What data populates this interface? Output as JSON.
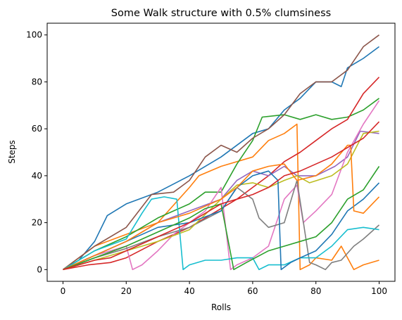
{
  "chart_data": {
    "type": "line",
    "title": "Some Walk structure with 0.5% clumsiness",
    "xlabel": "Rolls",
    "ylabel": "Steps",
    "xlim": [
      -5,
      105
    ],
    "ylim": [
      -5,
      105
    ],
    "x_ticks": [
      0,
      20,
      40,
      60,
      80,
      100
    ],
    "y_ticks": [
      0,
      20,
      40,
      60,
      80,
      100
    ],
    "grid": false,
    "series": [
      {
        "color": "#1f77b4",
        "points": [
          [
            0,
            0
          ],
          [
            5,
            4
          ],
          [
            10,
            12
          ],
          [
            14,
            23
          ],
          [
            20,
            28
          ],
          [
            30,
            33
          ],
          [
            40,
            40
          ],
          [
            50,
            48
          ],
          [
            60,
            58
          ],
          [
            65,
            60
          ],
          [
            70,
            68
          ],
          [
            75,
            73
          ],
          [
            80,
            80
          ],
          [
            85,
            80
          ],
          [
            88,
            78
          ],
          [
            90,
            86
          ],
          [
            95,
            90
          ],
          [
            100,
            95
          ]
        ]
      },
      {
        "color": "#ff7f0e",
        "points": [
          [
            0,
            0
          ],
          [
            10,
            10
          ],
          [
            20,
            15
          ],
          [
            30,
            20
          ],
          [
            40,
            35
          ],
          [
            43,
            40
          ],
          [
            50,
            44
          ],
          [
            60,
            48
          ],
          [
            65,
            55
          ],
          [
            70,
            58
          ],
          [
            74,
            62
          ],
          [
            75,
            0
          ],
          [
            78,
            2
          ],
          [
            80,
            5
          ],
          [
            85,
            4
          ],
          [
            88,
            10
          ],
          [
            92,
            0
          ],
          [
            95,
            2
          ],
          [
            100,
            4
          ]
        ]
      },
      {
        "color": "#2ca02c",
        "points": [
          [
            0,
            0
          ],
          [
            10,
            8
          ],
          [
            20,
            14
          ],
          [
            30,
            22
          ],
          [
            40,
            28
          ],
          [
            45,
            33
          ],
          [
            50,
            33
          ],
          [
            55,
            45
          ],
          [
            60,
            55
          ],
          [
            63,
            65
          ],
          [
            70,
            66
          ],
          [
            75,
            64
          ],
          [
            80,
            66
          ],
          [
            85,
            64
          ],
          [
            90,
            65
          ],
          [
            95,
            68
          ],
          [
            100,
            73
          ]
        ]
      },
      {
        "color": "#d62728",
        "points": [
          [
            0,
            0
          ],
          [
            8,
            2
          ],
          [
            15,
            3
          ],
          [
            20,
            5
          ],
          [
            30,
            12
          ],
          [
            40,
            18
          ],
          [
            50,
            26
          ],
          [
            55,
            30
          ],
          [
            60,
            35
          ],
          [
            65,
            40
          ],
          [
            70,
            46
          ],
          [
            75,
            50
          ],
          [
            80,
            55
          ],
          [
            85,
            60
          ],
          [
            90,
            64
          ],
          [
            95,
            75
          ],
          [
            100,
            82
          ]
        ]
      },
      {
        "color": "#9467bd",
        "points": [
          [
            0,
            0
          ],
          [
            10,
            6
          ],
          [
            20,
            12
          ],
          [
            30,
            20
          ],
          [
            40,
            25
          ],
          [
            50,
            30
          ],
          [
            55,
            38
          ],
          [
            60,
            42
          ],
          [
            65,
            40
          ],
          [
            70,
            44
          ],
          [
            74,
            40
          ],
          [
            80,
            40
          ],
          [
            86,
            44
          ],
          [
            90,
            48
          ],
          [
            94,
            59
          ],
          [
            100,
            58
          ]
        ]
      },
      {
        "color": "#8c564b",
        "points": [
          [
            0,
            0
          ],
          [
            5,
            5
          ],
          [
            10,
            10
          ],
          [
            20,
            18
          ],
          [
            28,
            32
          ],
          [
            35,
            33
          ],
          [
            40,
            38
          ],
          [
            45,
            48
          ],
          [
            50,
            53
          ],
          [
            55,
            50
          ],
          [
            60,
            56
          ],
          [
            65,
            60
          ],
          [
            70,
            66
          ],
          [
            75,
            75
          ],
          [
            80,
            80
          ],
          [
            85,
            80
          ],
          [
            90,
            85
          ],
          [
            95,
            95
          ],
          [
            100,
            100
          ]
        ]
      },
      {
        "color": "#e377c2",
        "points": [
          [
            0,
            0
          ],
          [
            5,
            3
          ],
          [
            10,
            6
          ],
          [
            20,
            10
          ],
          [
            22,
            0
          ],
          [
            25,
            2
          ],
          [
            30,
            8
          ],
          [
            35,
            15
          ],
          [
            40,
            20
          ],
          [
            45,
            25
          ],
          [
            50,
            35
          ],
          [
            53,
            0
          ],
          [
            55,
            2
          ],
          [
            60,
            5
          ],
          [
            65,
            10
          ],
          [
            70,
            30
          ],
          [
            74,
            36
          ],
          [
            76,
            20
          ],
          [
            80,
            25
          ],
          [
            85,
            32
          ],
          [
            90,
            50
          ],
          [
            95,
            62
          ],
          [
            100,
            72
          ]
        ]
      },
      {
        "color": "#7f7f7f",
        "points": [
          [
            0,
            0
          ],
          [
            10,
            5
          ],
          [
            20,
            9
          ],
          [
            30,
            14
          ],
          [
            40,
            18
          ],
          [
            50,
            25
          ],
          [
            55,
            35
          ],
          [
            60,
            30
          ],
          [
            62,
            22
          ],
          [
            65,
            18
          ],
          [
            70,
            20
          ],
          [
            74,
            38
          ],
          [
            78,
            3
          ],
          [
            80,
            2
          ],
          [
            83,
            0
          ],
          [
            85,
            3
          ],
          [
            88,
            4
          ],
          [
            92,
            10
          ],
          [
            95,
            13
          ],
          [
            100,
            19
          ]
        ]
      },
      {
        "color": "#bcbd22",
        "points": [
          [
            0,
            0
          ],
          [
            10,
            4
          ],
          [
            20,
            8
          ],
          [
            30,
            12
          ],
          [
            40,
            17
          ],
          [
            50,
            30
          ],
          [
            55,
            36
          ],
          [
            60,
            37
          ],
          [
            65,
            35
          ],
          [
            70,
            38
          ],
          [
            74,
            40
          ],
          [
            78,
            37
          ],
          [
            85,
            40
          ],
          [
            90,
            45
          ],
          [
            95,
            58
          ],
          [
            100,
            59
          ]
        ]
      },
      {
        "color": "#17becf",
        "points": [
          [
            0,
            0
          ],
          [
            10,
            8
          ],
          [
            20,
            13
          ],
          [
            25,
            24
          ],
          [
            28,
            30
          ],
          [
            32,
            31
          ],
          [
            36,
            30
          ],
          [
            38,
            0
          ],
          [
            40,
            2
          ],
          [
            45,
            4
          ],
          [
            50,
            4
          ],
          [
            55,
            5
          ],
          [
            60,
            5
          ],
          [
            62,
            0
          ],
          [
            65,
            2
          ],
          [
            70,
            2
          ],
          [
            75,
            5
          ],
          [
            80,
            5
          ],
          [
            85,
            10
          ],
          [
            90,
            17
          ],
          [
            95,
            18
          ],
          [
            100,
            17
          ]
        ]
      },
      {
        "color": "#1f77b4",
        "points": [
          [
            0,
            0
          ],
          [
            10,
            6
          ],
          [
            20,
            12
          ],
          [
            30,
            18
          ],
          [
            40,
            20
          ],
          [
            50,
            25
          ],
          [
            55,
            35
          ],
          [
            60,
            40
          ],
          [
            65,
            42
          ],
          [
            68,
            38
          ],
          [
            69,
            0
          ],
          [
            72,
            3
          ],
          [
            75,
            5
          ],
          [
            80,
            8
          ],
          [
            85,
            15
          ],
          [
            90,
            25
          ],
          [
            95,
            30
          ],
          [
            100,
            37
          ]
        ]
      },
      {
        "color": "#ff7f0e",
        "points": [
          [
            0,
            0
          ],
          [
            10,
            6
          ],
          [
            20,
            12
          ],
          [
            30,
            20
          ],
          [
            40,
            24
          ],
          [
            50,
            30
          ],
          [
            55,
            35
          ],
          [
            60,
            42
          ],
          [
            65,
            44
          ],
          [
            70,
            45
          ],
          [
            74,
            38
          ],
          [
            80,
            40
          ],
          [
            85,
            45
          ],
          [
            90,
            53
          ],
          [
            91,
            53
          ],
          [
            92,
            25
          ],
          [
            95,
            24
          ],
          [
            100,
            31
          ]
        ]
      },
      {
        "color": "#2ca02c",
        "points": [
          [
            0,
            0
          ],
          [
            10,
            5
          ],
          [
            20,
            10
          ],
          [
            30,
            16
          ],
          [
            40,
            22
          ],
          [
            45,
            26
          ],
          [
            50,
            28
          ],
          [
            54,
            0
          ],
          [
            58,
            3
          ],
          [
            65,
            8
          ],
          [
            70,
            10
          ],
          [
            75,
            12
          ],
          [
            80,
            14
          ],
          [
            85,
            20
          ],
          [
            90,
            30
          ],
          [
            95,
            34
          ],
          [
            100,
            44
          ]
        ]
      },
      {
        "color": "#d62728",
        "points": [
          [
            0,
            0
          ],
          [
            5,
            2
          ],
          [
            10,
            4
          ],
          [
            15,
            5
          ],
          [
            20,
            8
          ],
          [
            30,
            14
          ],
          [
            40,
            20
          ],
          [
            50,
            28
          ],
          [
            55,
            30
          ],
          [
            60,
            32
          ],
          [
            65,
            35
          ],
          [
            70,
            40
          ],
          [
            75,
            42
          ],
          [
            80,
            45
          ],
          [
            85,
            48
          ],
          [
            90,
            52
          ],
          [
            95,
            56
          ],
          [
            100,
            63
          ]
        ]
      }
    ]
  }
}
